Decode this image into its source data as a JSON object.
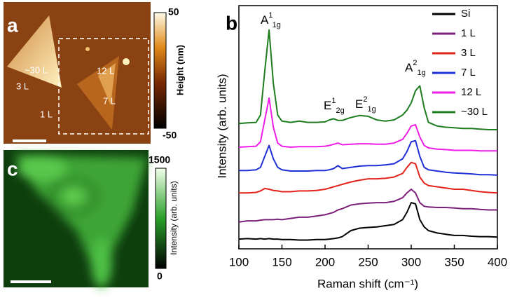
{
  "panels": {
    "a": {
      "label": "a",
      "regions": [
        "~30 L",
        "3 L",
        "12 L",
        "7 L",
        "1 L"
      ],
      "colorbar": {
        "max": 50,
        "min": -50,
        "title": "Height (nm)"
      }
    },
    "c": {
      "label": "c",
      "colorbar": {
        "max": 1500,
        "min": 0,
        "title": "Intensity (arb. units)"
      }
    }
  },
  "chart_data": {
    "type": "line",
    "label": "b",
    "xlabel": "Raman shift (cm⁻¹)",
    "ylabel": "Intensity (arb. units)",
    "x": [
      100,
      110,
      120,
      125,
      130,
      135,
      140,
      145,
      150,
      160,
      170,
      180,
      190,
      200,
      205,
      210,
      215,
      220,
      230,
      240,
      250,
      260,
      270,
      280,
      290,
      295,
      300,
      305,
      310,
      315,
      320,
      330,
      340,
      350,
      360,
      370,
      380,
      390,
      400
    ],
    "xlim": [
      100,
      400
    ],
    "xticks": [
      100,
      150,
      200,
      250,
      300,
      350,
      400
    ],
    "ylim": [
      0,
      10
    ],
    "legend": "top-right",
    "series": [
      {
        "name": "Si",
        "color": "#000000",
        "values": [
          0.4,
          0.42,
          0.4,
          0.42,
          0.4,
          0.42,
          0.4,
          0.4,
          0.38,
          0.38,
          0.36,
          0.36,
          0.38,
          0.38,
          0.4,
          0.42,
          0.45,
          0.5,
          0.75,
          0.85,
          0.88,
          0.9,
          0.95,
          1.0,
          1.2,
          1.5,
          1.9,
          1.85,
          1.2,
          0.9,
          0.75,
          0.65,
          0.6,
          0.55,
          0.55,
          0.52,
          0.5,
          0.5,
          0.48
        ]
      },
      {
        "name": "1 L",
        "color": "#7b1f7b",
        "values": [
          1.1,
          1.15,
          1.15,
          1.18,
          1.2,
          1.2,
          1.2,
          1.22,
          1.2,
          1.25,
          1.3,
          1.3,
          1.35,
          1.4,
          1.45,
          1.5,
          1.6,
          1.65,
          1.8,
          1.85,
          1.88,
          1.9,
          1.9,
          1.95,
          2.1,
          2.3,
          2.45,
          2.3,
          1.9,
          1.75,
          1.72,
          1.7,
          1.7,
          1.68,
          1.65,
          1.65,
          1.62,
          1.6,
          1.6
        ]
      },
      {
        "name": "3 L",
        "color": "#e2231a",
        "values": [
          2.3,
          2.3,
          2.32,
          2.38,
          2.48,
          2.45,
          2.4,
          2.38,
          2.35,
          2.35,
          2.38,
          2.38,
          2.4,
          2.45,
          2.5,
          2.55,
          2.6,
          2.65,
          2.75,
          2.82,
          2.88,
          2.88,
          2.9,
          2.95,
          3.1,
          3.35,
          3.55,
          3.5,
          2.95,
          2.7,
          2.6,
          2.55,
          2.5,
          2.45,
          2.45,
          2.4,
          2.35,
          2.32,
          2.3
        ]
      },
      {
        "name": "7 L",
        "color": "#1f2fd6",
        "values": [
          3.22,
          3.22,
          3.25,
          3.35,
          3.8,
          4.25,
          3.7,
          3.35,
          3.25,
          3.2,
          3.2,
          3.2,
          3.22,
          3.22,
          3.25,
          3.3,
          3.42,
          3.3,
          3.35,
          3.4,
          3.42,
          3.42,
          3.45,
          3.5,
          3.7,
          4.0,
          4.4,
          4.45,
          3.8,
          3.35,
          3.25,
          3.2,
          3.15,
          3.12,
          3.1,
          3.08,
          3.05,
          3.05,
          3.03
        ]
      },
      {
        "name": "12 L",
        "color": "#ee1ee8",
        "values": [
          4.18,
          4.2,
          4.22,
          4.4,
          5.3,
          6.2,
          5.0,
          4.35,
          4.22,
          4.18,
          4.2,
          4.2,
          4.2,
          4.22,
          4.25,
          4.3,
          4.35,
          4.28,
          4.3,
          4.32,
          4.32,
          4.3,
          4.3,
          4.35,
          4.5,
          4.75,
          5.05,
          5.1,
          4.6,
          4.25,
          4.15,
          4.1,
          4.08,
          4.05,
          4.05,
          4.05,
          4.03,
          4.03,
          4.03
        ]
      },
      {
        "name": "~30 L",
        "color": "#1e7d1e",
        "values": [
          5.15,
          5.18,
          5.2,
          5.5,
          7.3,
          9.0,
          6.8,
          5.5,
          5.25,
          5.2,
          5.25,
          5.2,
          5.2,
          5.22,
          5.3,
          5.35,
          5.28,
          5.28,
          5.4,
          5.48,
          5.45,
          5.3,
          5.25,
          5.3,
          5.5,
          5.7,
          6.0,
          6.5,
          6.7,
          5.8,
          5.2,
          5.05,
          5.0,
          4.98,
          4.95,
          4.95,
          4.92,
          4.9,
          4.9
        ]
      }
    ],
    "annotations": [
      {
        "text": "A",
        "sup": "1",
        "sub": "1g"
      },
      {
        "text": "E",
        "sup": "1",
        "sub": "2g"
      },
      {
        "text": "E",
        "sup": "2",
        "sub": "1g"
      },
      {
        "text": "A",
        "sup": "2",
        "sub": "1g"
      }
    ]
  }
}
